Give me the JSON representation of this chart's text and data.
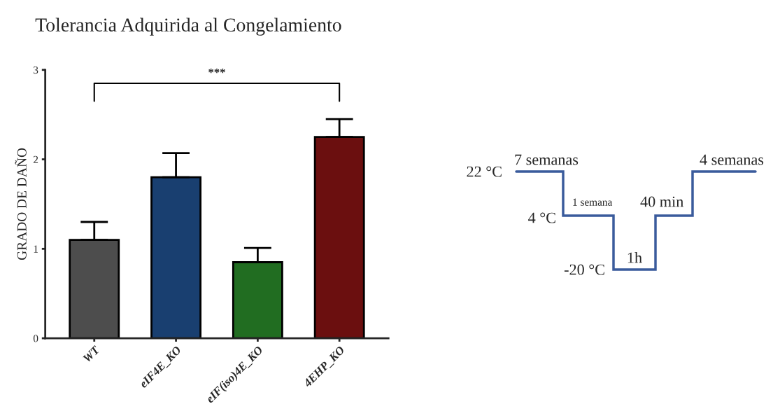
{
  "chart_data": [
    {
      "type": "bar",
      "title": "Tolerancia Adquirida al Congelamiento",
      "ylabel": "GRADO DE DAÑO",
      "categories": [
        "WT",
        "eIF4E_KO",
        "eIF(iso)4E_KO",
        "4EHP_KO"
      ],
      "values": [
        1.1,
        1.8,
        0.85,
        2.25
      ],
      "colors": [
        "#4d4d4d",
        "#0b3d7e",
        "#147a14",
        "#7a0000"
      ],
      "errors": [
        [
          1.1,
          1.3
        ],
        [
          1.8,
          2.07
        ],
        [
          0.85,
          1.01
        ],
        [
          2.25,
          2.45
        ]
      ],
      "ylim": [
        0,
        3
      ],
      "yticks": [
        0,
        1,
        2,
        3
      ],
      "grid": false,
      "legend": false,
      "annotations": [
        "***"
      ]
    },
    {
      "type": "other",
      "annotations": [
        "22 °C",
        "7 semanas",
        "4 °C",
        "1 semana",
        "-20 °C",
        "1h",
        "40 min",
        "4 semanas"
      ]
    }
  ]
}
